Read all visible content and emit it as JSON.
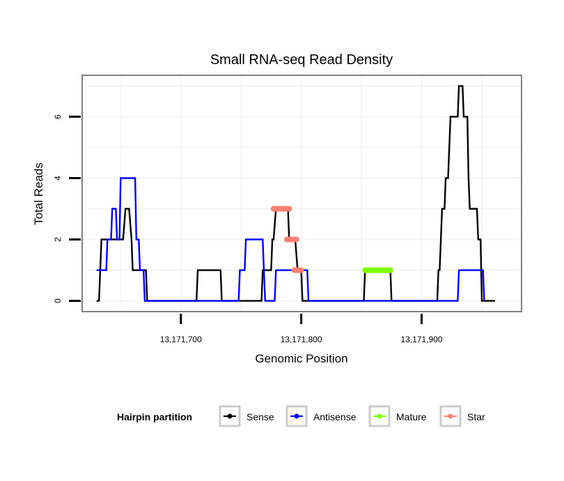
{
  "chart_data": {
    "type": "line",
    "title": "Small RNA-seq Read Density",
    "xlabel": "Genomic Position",
    "ylabel": "Total Reads",
    "xlim": [
      13171618,
      13171983
    ],
    "ylim": [
      -0.35,
      7.35
    ],
    "x_ticks": [
      13171700,
      13171800,
      13171900
    ],
    "x_tick_labels": [
      "13,171,700",
      "13,171,800",
      "13,171,900"
    ],
    "y_ticks": [
      0,
      2,
      4,
      6
    ],
    "y_tick_labels": [
      "0",
      "2",
      "4",
      "6"
    ],
    "grid": true,
    "legend": {
      "title": "Hairpin partition",
      "placement": "bottom",
      "entries": [
        {
          "label": "Sense",
          "color": "#000000"
        },
        {
          "label": "Antisense",
          "color": "#0000ff"
        },
        {
          "label": "Mature",
          "color": "#7fff00"
        },
        {
          "label": "Star",
          "color": "#fa8072"
        }
      ]
    },
    "series": [
      {
        "name": "Sense",
        "color": "#000000",
        "step": true,
        "points": [
          [
            13171630,
            0
          ],
          [
            13171632,
            0
          ],
          [
            13171634,
            2
          ],
          [
            13171652,
            2
          ],
          [
            13171654,
            3
          ],
          [
            13171657,
            3
          ],
          [
            13171659,
            2
          ],
          [
            13171660,
            1
          ],
          [
            13171671,
            1
          ],
          [
            13171672,
            0
          ],
          [
            13171713,
            0
          ],
          [
            13171714,
            1
          ],
          [
            13171733,
            1
          ],
          [
            13171734,
            0
          ],
          [
            13171767,
            0
          ],
          [
            13171768,
            1
          ],
          [
            13171775,
            1
          ],
          [
            13171776,
            2
          ],
          [
            13171777,
            2
          ],
          [
            13171779,
            3
          ],
          [
            13171789,
            3
          ],
          [
            13171790,
            2
          ],
          [
            13171795,
            2
          ],
          [
            13171797,
            1
          ],
          [
            13171800,
            1
          ],
          [
            13171801,
            0
          ],
          [
            13171852,
            0
          ],
          [
            13171853,
            1
          ],
          [
            13171874,
            1
          ],
          [
            13171875,
            0
          ],
          [
            13171913,
            0
          ],
          [
            13171914,
            1
          ],
          [
            13171915,
            1
          ],
          [
            13171917,
            3
          ],
          [
            13171919,
            3
          ],
          [
            13171920,
            4
          ],
          [
            13171922,
            4
          ],
          [
            13171924,
            6
          ],
          [
            13171930,
            6
          ],
          [
            13171931,
            7
          ],
          [
            13171934,
            7
          ],
          [
            13171935,
            6
          ],
          [
            13171938,
            6
          ],
          [
            13171939,
            4
          ],
          [
            13171940,
            3
          ],
          [
            13171946,
            3
          ],
          [
            13171947,
            2
          ],
          [
            13171949,
            2
          ],
          [
            13171950,
            0
          ],
          [
            13171961,
            0
          ]
        ]
      },
      {
        "name": "Antisense",
        "color": "#0000ff",
        "step": true,
        "points": [
          [
            13171630,
            1
          ],
          [
            13171638,
            1
          ],
          [
            13171639,
            2
          ],
          [
            13171642,
            2
          ],
          [
            13171643,
            3
          ],
          [
            13171646,
            3
          ],
          [
            13171647,
            2
          ],
          [
            13171649,
            2
          ],
          [
            13171650,
            4
          ],
          [
            13171662,
            4
          ],
          [
            13171663,
            2
          ],
          [
            13171665,
            2
          ],
          [
            13171666,
            1
          ],
          [
            13171669,
            1
          ],
          [
            13171670,
            0
          ],
          [
            13171748,
            0
          ],
          [
            13171749,
            1
          ],
          [
            13171753,
            1
          ],
          [
            13171754,
            2
          ],
          [
            13171768,
            2
          ],
          [
            13171769,
            1
          ],
          [
            13171770,
            0
          ],
          [
            13171778,
            0
          ],
          [
            13171779,
            1
          ],
          [
            13171805,
            1
          ],
          [
            13171806,
            0
          ],
          [
            13171930,
            0
          ],
          [
            13171931,
            1
          ],
          [
            13171951,
            1
          ],
          [
            13171952,
            0
          ]
        ]
      },
      {
        "name": "Mature",
        "color": "#7fff00",
        "step": false,
        "points": [
          [
            13171853,
            1
          ],
          [
            13171874,
            1
          ]
        ]
      },
      {
        "name": "Star",
        "color": "#fa8072",
        "step": false,
        "segments": [
          [
            [
              13171777,
              3
            ],
            [
              13171790,
              3
            ]
          ],
          [
            [
              13171788,
              2
            ],
            [
              13171796,
              2
            ]
          ],
          [
            [
              13171794,
              1
            ],
            [
              13171800,
              1
            ]
          ]
        ]
      }
    ]
  }
}
